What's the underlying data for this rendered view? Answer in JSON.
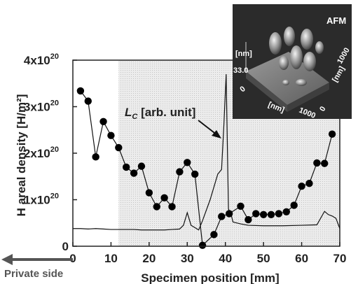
{
  "chart_data": {
    "type": "scatter",
    "xlabel": "Specimen position [mm]",
    "ylabel": "H areal density [H/m²]",
    "xlim": [
      0,
      70
    ],
    "ylim": [
      0,
      4e+20
    ],
    "x_ticks": [
      0,
      10,
      20,
      30,
      40,
      50,
      60,
      70
    ],
    "y_ticks": [
      {
        "value": 0,
        "base": "0",
        "exp": ""
      },
      {
        "value": 1e+20,
        "base": "1x10",
        "exp": "20"
      },
      {
        "value": 2e+20,
        "base": "2x10",
        "exp": "20"
      },
      {
        "value": 3e+20,
        "base": "3x10",
        "exp": "20"
      },
      {
        "value": 4e+20,
        "base": "4x10",
        "exp": "20"
      }
    ],
    "shaded_region": [
      12,
      70
    ],
    "series": [
      {
        "kind": "markers-line",
        "x": [
          2,
          4,
          6,
          8,
          10,
          12,
          14,
          16,
          18,
          20,
          22,
          24,
          26,
          28,
          30,
          32,
          34,
          37,
          39,
          41,
          44,
          46,
          48,
          50,
          52,
          54,
          56,
          58,
          60,
          62,
          64,
          66,
          68
        ],
        "y": [
          3.34e+20,
          3.12e+20,
          1.92e+20,
          2.68e+20,
          2.38e+20,
          2.12e+20,
          1.7e+20,
          1.57e+20,
          1.72e+20,
          1.15e+20,
          8.5e+19,
          1.04e+20,
          8.5e+19,
          1.6e+20,
          1.8e+20,
          1.55e+20,
          2e+18,
          2.5e+19,
          6.4e+19,
          7e+19,
          8.6e+19,
          5.7e+19,
          7e+19,
          6.8e+19,
          6.8e+19,
          7e+19,
          7.4e+19,
          8.8e+19,
          1.29e+20,
          1.35e+20,
          1.79e+20,
          1.78e+20,
          2.41e+20
        ]
      },
      {
        "name": "L_C [arb. unit]",
        "kind": "line",
        "x": [
          0,
          2,
          4,
          6,
          8,
          10,
          12,
          14,
          16,
          18,
          20,
          22,
          24,
          26,
          28,
          29,
          30,
          31,
          32,
          33,
          34,
          36,
          38,
          39,
          39.6,
          40.2,
          40.8,
          41.5,
          42,
          44,
          46,
          50,
          55,
          60,
          64,
          66,
          67,
          68,
          69,
          70
        ],
        "y": [
          3.8e+19,
          3.8e+19,
          3.7e+19,
          3.8e+19,
          3.7e+19,
          3.6e+19,
          3.6e+19,
          3.6e+19,
          3.6e+19,
          3.5e+19,
          3.5e+19,
          3.5e+19,
          3.5e+19,
          3.6e+19,
          3.7e+19,
          4.5e+19,
          7.2e+19,
          4.5e+19,
          4e+19,
          3.5e+19,
          5.5e+19,
          1e+20,
          1.55e+20,
          1.65e+20,
          2.6e+20,
          3.7e+20,
          8e+19,
          6.8e+19,
          5.2e+19,
          4.8e+19,
          4.5e+19,
          4.4e+19,
          4.4e+19,
          4.5e+19,
          4.6e+19,
          7.5e+19,
          6.8e+19,
          6.5e+19,
          6e+19,
          3.8e+19
        ]
      }
    ],
    "annotations": {
      "lc_label_main": "L",
      "lc_label_sub": "C",
      "lc_label_rest": " [arb. unit]",
      "private_side": "Private side"
    },
    "inset": {
      "title": "AFM",
      "z_unit": "[nm]",
      "z_value": "33.0",
      "x_unit": "[nm]",
      "x_zero": "0",
      "x_max": "1000",
      "y_unit": "[nm]",
      "y_zero": "0",
      "y_max": "1000"
    },
    "colors": {
      "markers": "#000000",
      "shade": "#e9e9e9",
      "arrow_private": "#555555",
      "inset_bg": "#2b2b2b"
    }
  }
}
